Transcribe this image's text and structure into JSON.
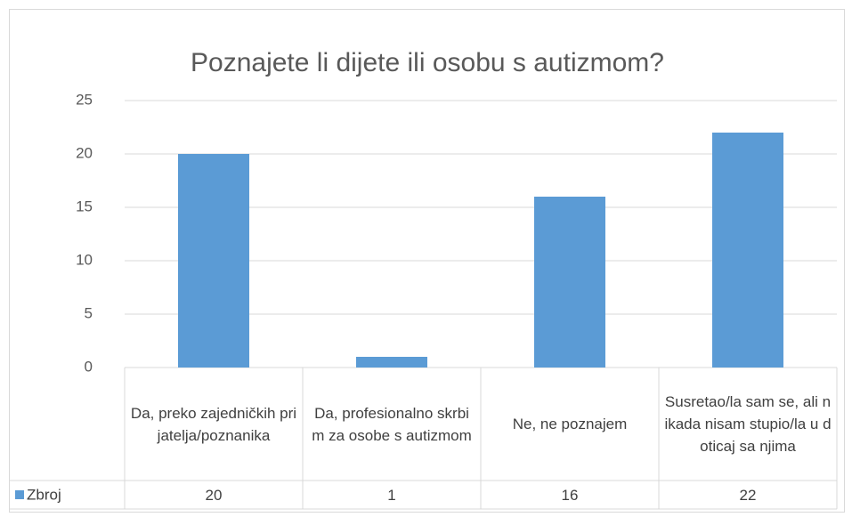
{
  "chart_data": {
    "type": "bar",
    "title": "Poznajete li dijete ili osobu s autizmom?",
    "categories": [
      "Da, preko zajedničkih prijatelja/poznanika",
      "Da, profesionalno skrbim za osobe s autizmom",
      "Ne, ne poznajem",
      "Susretao/la sam se, ali nikada nisam stupio/la u doticaj sa njima"
    ],
    "series": [
      {
        "name": "Zbroj",
        "color": "#5b9bd5",
        "values": [
          20,
          1,
          16,
          22
        ]
      }
    ],
    "ylim": [
      0,
      25
    ],
    "yticks": [
      0,
      5,
      10,
      15,
      20,
      25
    ],
    "grid": true,
    "data_table": true
  }
}
